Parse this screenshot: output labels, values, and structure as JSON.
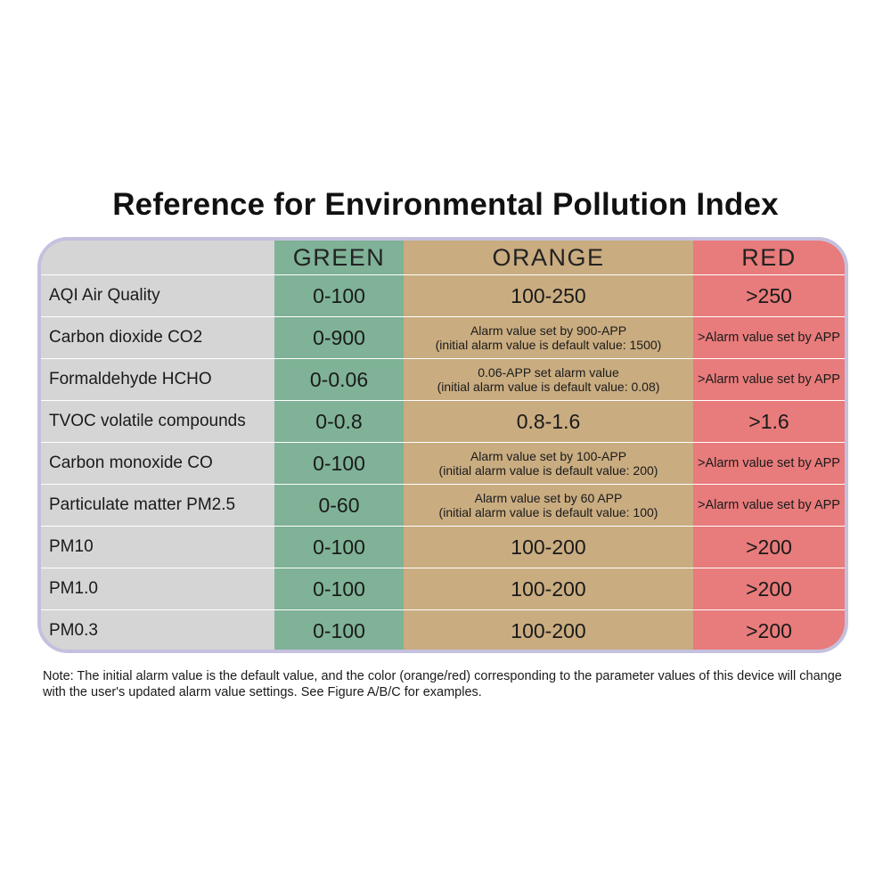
{
  "title": "Reference for Environmental Pollution Index",
  "headers": {
    "label": "",
    "green": "GREEN",
    "orange": "ORANGE",
    "red": "RED"
  },
  "colors": {
    "green": "#7fb296",
    "orange": "#c9ac80",
    "red": "#e87b7b",
    "label": "#d5d5d5",
    "frame": "#c4c0de"
  },
  "rows": [
    {
      "label": "AQI Air Quality",
      "green": "0-100",
      "orange": "100-250",
      "red": ">250"
    },
    {
      "label": "Carbon dioxide CO2",
      "green": "0-900",
      "orange_line1": "Alarm value set by 900-APP",
      "orange_line2": "(initial alarm value is default value: 1500)",
      "red": ">Alarm value set by APP"
    },
    {
      "label": "Formaldehyde HCHO",
      "green": "0-0.06",
      "orange_line1": "0.06-APP set alarm value",
      "orange_line2": "(initial alarm value is default value: 0.08)",
      "red": ">Alarm value set by APP"
    },
    {
      "label": "TVOC volatile compounds",
      "green": "0-0.8",
      "orange": "0.8-1.6",
      "red": ">1.6"
    },
    {
      "label": "Carbon monoxide CO",
      "green": "0-100",
      "orange_line1": "Alarm value set by 100-APP",
      "orange_line2": "(initial alarm value is default value: 200)",
      "red": ">Alarm value set by APP"
    },
    {
      "label": "Particulate matter PM2.5",
      "green": "0-60",
      "orange_line1": "Alarm value set by 60 APP",
      "orange_line2": "(initial alarm value is default value: 100)",
      "red": ">Alarm value set by APP"
    },
    {
      "label": "PM10",
      "green": "0-100",
      "orange": "100-200",
      "red": ">200"
    },
    {
      "label": "PM1.0",
      "green": "0-100",
      "orange": "100-200",
      "red": ">200"
    },
    {
      "label": "PM0.3",
      "green": "0-100",
      "orange": "100-200",
      "red": ">200"
    }
  ],
  "note": "Note: The initial alarm value is the default value, and the color (orange/red) corresponding to the parameter values of this device will change with the user's updated alarm value settings. See Figure A/B/C for examples."
}
